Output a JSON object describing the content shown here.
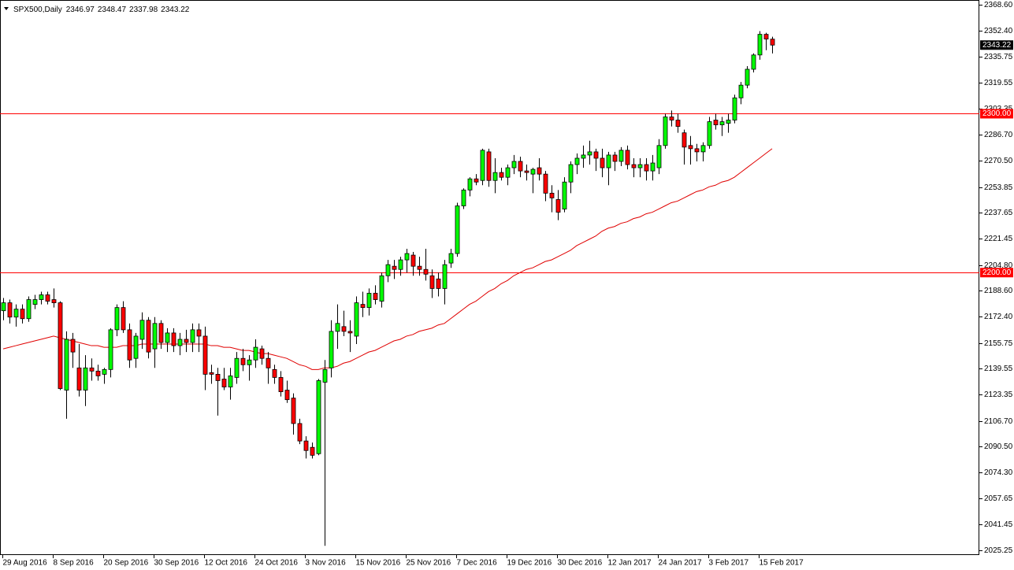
{
  "chart_data": {
    "type": "candlestick",
    "title": "SPX500,Daily",
    "categories": [
      "29 Aug 2016",
      null,
      null,
      null,
      null,
      null,
      null,
      null,
      "8 Sep 2016",
      null,
      null,
      null,
      null,
      null,
      null,
      null,
      "20 Sep 2016",
      null,
      null,
      null,
      null,
      null,
      null,
      null,
      "30 Sep 2016",
      null,
      null,
      null,
      null,
      null,
      null,
      null,
      "12 Oct 2016",
      null,
      null,
      null,
      null,
      null,
      null,
      null,
      "24 Oct 2016",
      null,
      null,
      null,
      null,
      null,
      null,
      null,
      "3 Nov 2016",
      null,
      null,
      null,
      null,
      null,
      null,
      null,
      "15 Nov 2016",
      null,
      null,
      null,
      null,
      null,
      null,
      null,
      "25 Nov 2016",
      null,
      null,
      null,
      null,
      null,
      null,
      null,
      "7 Dec 2016",
      null,
      null,
      null,
      null,
      null,
      null,
      null,
      "19 Dec 2016",
      null,
      null,
      null,
      null,
      null,
      null,
      null,
      "30 Dec 2016",
      null,
      null,
      null,
      null,
      null,
      null,
      null,
      "12 Jan 2017",
      null,
      null,
      null,
      null,
      null,
      null,
      null,
      "24 Jan 2017",
      null,
      null,
      null,
      null,
      null,
      null,
      null,
      "3 Feb 2017",
      null,
      null,
      null,
      null,
      null,
      null,
      null,
      "15 Feb 2017",
      null,
      null
    ],
    "open": [
      2176,
      2181,
      2172,
      2177,
      2171,
      2180,
      2183,
      2186,
      2183,
      2181,
      2126,
      2158,
      2140,
      2126,
      2140,
      2138,
      2136,
      2139,
      2164,
      2178,
      2164,
      2146,
      2158,
      2170,
      2152,
      2168,
      2156,
      2162,
      2154,
      2158,
      2156,
      2164,
      2160,
      2137,
      2136,
      2133,
      2128,
      2134,
      2146,
      2142,
      2145,
      2152,
      2146,
      2139,
      2134,
      2126,
      2121,
      2105,
      2094,
      2090,
      2086,
      2131,
      2140,
      2163,
      2166,
      2163,
      2160,
      2180,
      2178,
      2187,
      2182,
      2198,
      2204,
      2202,
      2208,
      2211,
      2204,
      2202,
      2198,
      2196,
      2190,
      2206,
      2212,
      2242,
      2252,
      2259,
      2258,
      2276,
      2258,
      2263,
      2260,
      2266,
      2270,
      2264,
      2262,
      2266,
      2262,
      2250,
      2246,
      2240,
      2257,
      2268,
      2272,
      2274,
      2276,
      2272,
      2266,
      2274,
      2270,
      2277,
      2268,
      2266,
      2268,
      2264,
      2266,
      2280,
      2298,
      2296,
      2288,
      2280,
      2278,
      2276,
      2280,
      2296,
      2293,
      2294,
      2296,
      2310,
      2318,
      2328,
      2337,
      2350,
      2346.97
    ],
    "high": [
      2184,
      2183,
      2180,
      2180,
      2185,
      2186,
      2188,
      2188,
      2190,
      2182,
      2163,
      2162,
      2155,
      2148,
      2146,
      2142,
      2140,
      2165,
      2180,
      2182,
      2168,
      2162,
      2175,
      2172,
      2172,
      2170,
      2165,
      2165,
      2162,
      2164,
      2168,
      2168,
      2166,
      2142,
      2140,
      2140,
      2140,
      2150,
      2152,
      2148,
      2158,
      2154,
      2150,
      2142,
      2138,
      2132,
      2124,
      2108,
      2097,
      2093,
      2133,
      2145,
      2170,
      2180,
      2176,
      2170,
      2185,
      2188,
      2190,
      2192,
      2200,
      2208,
      2208,
      2210,
      2215,
      2213,
      2210,
      2215,
      2202,
      2200,
      2208,
      2215,
      2244,
      2253,
      2260,
      2262,
      2278,
      2278,
      2272,
      2266,
      2268,
      2274,
      2273,
      2268,
      2266,
      2272,
      2264,
      2255,
      2252,
      2260,
      2270,
      2275,
      2280,
      2283,
      2278,
      2278,
      2276,
      2276,
      2279,
      2280,
      2272,
      2272,
      2272,
      2274,
      2284,
      2300,
      2302,
      2300,
      2290,
      2286,
      2281,
      2282,
      2298,
      2300,
      2298,
      2300,
      2312,
      2320,
      2330,
      2338,
      2352,
      2351,
      2348.47
    ],
    "low": [
      2170,
      2168,
      2166,
      2168,
      2169,
      2177,
      2180,
      2180,
      2178,
      2126,
      2108,
      2140,
      2122,
      2116,
      2132,
      2132,
      2130,
      2134,
      2160,
      2162,
      2140,
      2140,
      2152,
      2146,
      2140,
      2152,
      2150,
      2150,
      2148,
      2150,
      2150,
      2150,
      2126,
      2130,
      2110,
      2126,
      2120,
      2130,
      2138,
      2132,
      2140,
      2142,
      2130,
      2130,
      2122,
      2118,
      2098,
      2092,
      2083,
      2083,
      2085,
      2028,
      2134,
      2152,
      2160,
      2150,
      2155,
      2172,
      2173,
      2180,
      2178,
      2194,
      2196,
      2198,
      2200,
      2198,
      2198,
      2195,
      2184,
      2185,
      2180,
      2203,
      2210,
      2240,
      2248,
      2255,
      2255,
      2254,
      2250,
      2258,
      2255,
      2262,
      2260,
      2258,
      2250,
      2258,
      2245,
      2238,
      2233,
      2238,
      2250,
      2262,
      2266,
      2268,
      2264,
      2260,
      2255,
      2264,
      2267,
      2265,
      2260,
      2260,
      2258,
      2258,
      2262,
      2278,
      2292,
      2288,
      2268,
      2268,
      2270,
      2270,
      2278,
      2290,
      2286,
      2288,
      2294,
      2306,
      2316,
      2326,
      2334,
      2340,
      2337.98
    ],
    "close": [
      2181,
      2172,
      2177,
      2171,
      2183,
      2183,
      2186,
      2182,
      2181,
      2127,
      2158,
      2150,
      2126,
      2140,
      2138,
      2135,
      2139,
      2164,
      2178,
      2164,
      2145,
      2160,
      2170,
      2150,
      2168,
      2156,
      2162,
      2154,
      2158,
      2156,
      2164,
      2160,
      2136,
      2136,
      2132,
      2128,
      2135,
      2146,
      2142,
      2145,
      2153,
      2146,
      2140,
      2134,
      2125,
      2120,
      2105,
      2094,
      2088,
      2085,
      2132,
      2139,
      2163,
      2168,
      2163,
      2162,
      2181,
      2178,
      2187,
      2183,
      2198,
      2205,
      2202,
      2208,
      2212,
      2204,
      2202,
      2199,
      2190,
      2190,
      2205,
      2212,
      2242,
      2252,
      2259,
      2257,
      2277,
      2258,
      2263,
      2260,
      2266,
      2270,
      2264,
      2263,
      2265,
      2262,
      2250,
      2247,
      2238,
      2257,
      2268,
      2272,
      2274,
      2276,
      2272,
      2266,
      2274,
      2270,
      2277,
      2268,
      2266,
      2268,
      2264,
      2269,
      2280,
      2298,
      2296,
      2292,
      2279,
      2278,
      2276,
      2280,
      2295,
      2293,
      2295,
      2296,
      2310,
      2318,
      2328,
      2337,
      2350,
      2347,
      2343.22
    ],
    "up_color": "#00ff00",
    "down_color": "#ff0000",
    "moving_average": {
      "color": "#e00000",
      "values": [
        2152,
        2153,
        2154,
        2155,
        2156,
        2157,
        2158,
        2159,
        2160,
        2159,
        2158,
        2157,
        2156,
        2155,
        2154,
        2154,
        2153,
        2153,
        2153,
        2154,
        2154,
        2154,
        2155,
        2155,
        2155,
        2155,
        2155,
        2155,
        2155,
        2155,
        2155,
        2155,
        2155,
        2154,
        2154,
        2153,
        2153,
        2152,
        2151,
        2151,
        2150,
        2149,
        2149,
        2148,
        2147,
        2146,
        2144,
        2142,
        2141,
        2139,
        2139,
        2140,
        2140,
        2141,
        2143,
        2144,
        2146,
        2148,
        2150,
        2151,
        2153,
        2155,
        2157,
        2158,
        2160,
        2161,
        2163,
        2164,
        2165,
        2167,
        2168,
        2171,
        2174,
        2177,
        2180,
        2182,
        2185,
        2188,
        2190,
        2193,
        2195,
        2198,
        2200,
        2202,
        2203,
        2205,
        2207,
        2208,
        2210,
        2212,
        2214,
        2217,
        2219,
        2221,
        2223,
        2226,
        2228,
        2229,
        2231,
        2232,
        2234,
        2235,
        2237,
        2238,
        2240,
        2242,
        2244,
        2245,
        2247,
        2249,
        2251,
        2252,
        2254,
        2255,
        2257,
        2258,
        2260,
        2263,
        2266,
        2269,
        2272,
        2275,
        2278
      ]
    },
    "hlines": [
      {
        "value": 2300,
        "label": "2300.00"
      },
      {
        "value": 2200,
        "label": "2200.00"
      }
    ],
    "hline_color": "#ff0000",
    "ylim": [
      2022.2,
      2371.6
    ],
    "yticks": [
      {
        "value": 2368.6,
        "label": "2368.60"
      },
      {
        "value": 2352.4,
        "label": "2352.40"
      },
      2335.75,
      2319.55,
      2303.35,
      {
        "value": 2286.7,
        "label": "2286.70"
      },
      {
        "value": 2270.5,
        "label": "2270.50"
      },
      2253.85,
      2237.65,
      2221.45,
      {
        "value": 2204.8,
        "label": "2204.80"
      },
      {
        "value": 2188.6,
        "label": "2188.60"
      },
      {
        "value": 2172.4,
        "label": "2172.40"
      },
      2155.75,
      2139.55,
      2123.35,
      {
        "value": 2106.7,
        "label": "2106.70"
      },
      {
        "value": 2090.5,
        "label": "2090.50"
      },
      {
        "value": 2074.3,
        "label": "2074.30"
      },
      2057.65,
      2041.45,
      2025.25
    ]
  }
}
